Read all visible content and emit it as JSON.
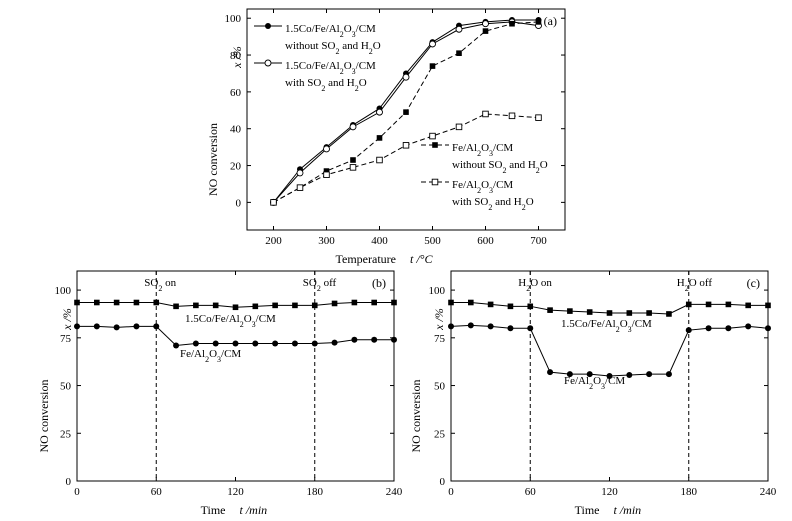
{
  "colors": {
    "ink": "#000000",
    "background": "#ffffff"
  },
  "chart_data": [
    {
      "id": "a",
      "type": "line",
      "panel_label": "(a)",
      "xlabel": "Temperature",
      "xunit": "t /°C",
      "ylabel": "NO conversion",
      "yunit": "x /%",
      "xlim": [
        150,
        750
      ],
      "ylim": [
        -15,
        105
      ],
      "xticks": [
        200,
        300,
        400,
        500,
        600,
        700
      ],
      "yticks": [
        0,
        20,
        40,
        60,
        80,
        100
      ],
      "legend_position": "left/right inside",
      "x": [
        200,
        250,
        300,
        350,
        400,
        450,
        500,
        550,
        600,
        650,
        700
      ],
      "series": [
        {
          "marker": "filled-circle",
          "line": "solid",
          "legend": [
            "1.5Co/Fe/Al",
            "2",
            "O",
            "3",
            "/CM"
          ],
          "legend_sub": [
            "without SO",
            "2",
            " and H",
            "2",
            "O"
          ],
          "values": [
            0,
            18,
            30,
            42,
            51,
            70,
            87,
            96,
            98,
            99,
            99
          ]
        },
        {
          "marker": "open-circle",
          "line": "solid",
          "legend": [
            "1.5Co/Fe/Al",
            "2",
            "O",
            "3",
            "/CM"
          ],
          "legend_sub": [
            "with SO",
            "2",
            " and H",
            "2",
            "O"
          ],
          "values": [
            0,
            16,
            29,
            41,
            49,
            68,
            86,
            94,
            97,
            98,
            96
          ]
        },
        {
          "marker": "filled-square",
          "line": "dashed",
          "legend": [
            "Fe/Al",
            "2",
            "O",
            "3",
            "/CM"
          ],
          "legend_sub": [
            "without SO",
            "2",
            " and H",
            "2",
            "O"
          ],
          "values": [
            0,
            8,
            17,
            23,
            35,
            49,
            74,
            81,
            93,
            97,
            98
          ]
        },
        {
          "marker": "open-square",
          "line": "dashed",
          "legend": [
            "Fe/Al",
            "2",
            "O",
            "3",
            "/CM"
          ],
          "legend_sub": [
            "with SO",
            "2",
            " and H",
            "2",
            "O"
          ],
          "values": [
            0,
            8,
            15,
            19,
            23,
            31,
            36,
            41,
            48,
            47,
            46
          ]
        }
      ]
    },
    {
      "id": "b",
      "type": "line",
      "panel_label": "(b)",
      "xlabel": "Time",
      "xunit": "t /min",
      "ylabel": "NO conversion",
      "yunit": "x /%",
      "xlim": [
        0,
        240
      ],
      "ylim": [
        0,
        110
      ],
      "xticks": [
        0,
        60,
        120,
        180,
        240
      ],
      "yticks": [
        0,
        25,
        50,
        75,
        100
      ],
      "markers_vertical": [
        {
          "x": 60,
          "label": [
            "SO",
            "2",
            " on"
          ]
        },
        {
          "x": 180,
          "label": [
            "SO",
            "2",
            " off"
          ]
        }
      ],
      "series": [
        {
          "marker": "filled-square",
          "label": [
            "1.5Co/Fe/Al",
            "2",
            "O",
            "3",
            "/CM"
          ],
          "x": [
            0,
            15,
            30,
            45,
            60,
            75,
            90,
            105,
            120,
            135,
            150,
            165,
            180,
            195,
            210,
            225,
            240
          ],
          "values": [
            93.5,
            93.5,
            93.5,
            93.5,
            93.5,
            91.5,
            92,
            92,
            91,
            91.5,
            92,
            92,
            92,
            93,
            93.5,
            93.5,
            93.5
          ]
        },
        {
          "marker": "filled-circle",
          "label": [
            "Fe/Al",
            "2",
            "O",
            "3",
            "/CM"
          ],
          "x": [
            0,
            15,
            30,
            45,
            60,
            75,
            90,
            105,
            120,
            135,
            150,
            165,
            180,
            195,
            210,
            225,
            240
          ],
          "values": [
            81,
            81,
            80.5,
            81,
            81,
            71,
            72,
            72,
            72,
            72,
            72,
            72,
            72,
            72.5,
            74,
            74,
            74
          ]
        }
      ]
    },
    {
      "id": "c",
      "type": "line",
      "panel_label": "(c)",
      "xlabel": "Time",
      "xunit": "t /min",
      "ylabel": "NO conversion",
      "yunit": "x /%",
      "xlim": [
        0,
        240
      ],
      "ylim": [
        0,
        110
      ],
      "xticks": [
        0,
        60,
        120,
        180,
        240
      ],
      "yticks": [
        0,
        25,
        50,
        75,
        100
      ],
      "markers_vertical": [
        {
          "x": 60,
          "label": [
            "H",
            "2",
            "O on"
          ]
        },
        {
          "x": 180,
          "label": [
            "H",
            "2",
            "O off"
          ]
        }
      ],
      "series": [
        {
          "marker": "filled-square",
          "label": [
            "1.5Co/Fe/Al",
            "2",
            "O",
            "3",
            "/CM"
          ],
          "x": [
            0,
            15,
            30,
            45,
            60,
            75,
            90,
            105,
            120,
            135,
            150,
            165,
            180,
            195,
            210,
            225,
            240
          ],
          "values": [
            93.5,
            93.5,
            92.5,
            91.5,
            91.5,
            89.5,
            89,
            88.5,
            88,
            88,
            88,
            87.5,
            92.5,
            92.5,
            92.5,
            92,
            92
          ]
        },
        {
          "marker": "filled-circle",
          "label": [
            "Fe/Al",
            "2",
            "O",
            "3",
            "/CM"
          ],
          "x": [
            0,
            15,
            30,
            45,
            60,
            75,
            90,
            105,
            120,
            135,
            150,
            165,
            180,
            195,
            210,
            225,
            240
          ],
          "values": [
            81,
            81.5,
            81,
            80,
            80,
            57,
            56,
            56,
            55,
            55.5,
            56,
            56,
            79,
            80,
            80,
            81,
            80
          ]
        }
      ]
    }
  ]
}
